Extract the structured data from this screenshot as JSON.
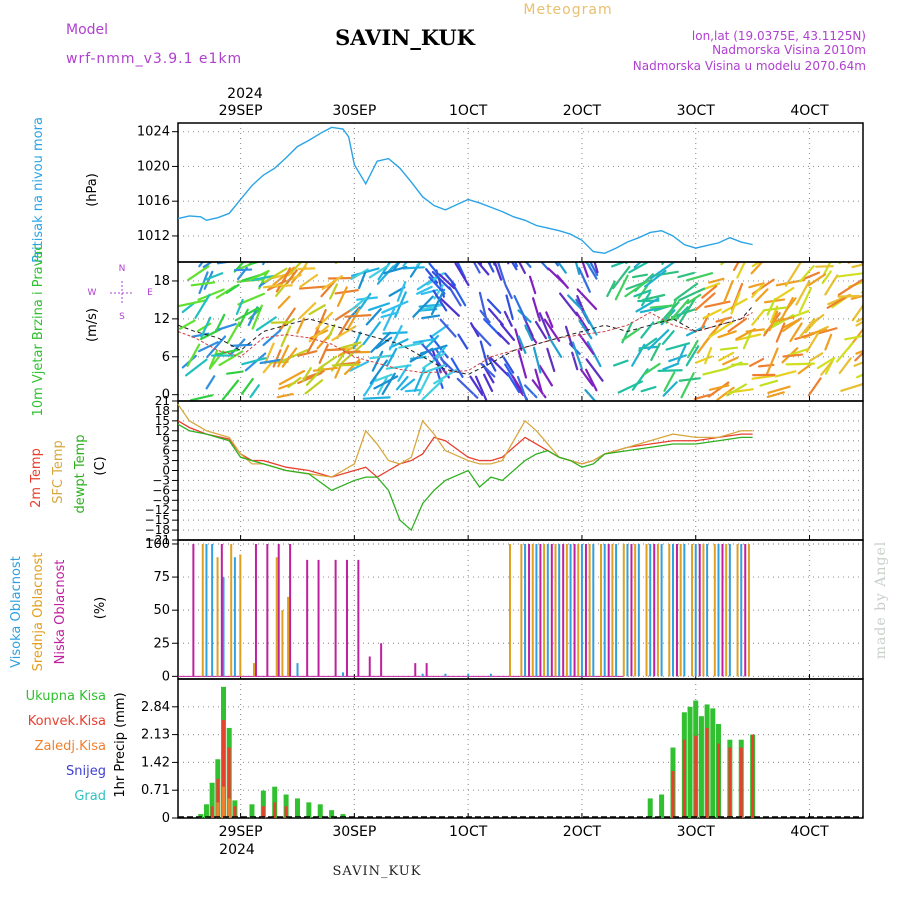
{
  "header": {
    "model_label": "Model",
    "model_name": "wrf-nmm_v3.9.1  e1km",
    "station": "SAVIN_KUK",
    "product": "Meteogram",
    "coords": "lon,lat (19.0375E, 43.1125N)",
    "elevation": "Nadmorska Visina 2010m",
    "model_elevation": "Nadmorska Visina u modelu 2070.64m"
  },
  "footer": {
    "station": "SAVIN_KUK",
    "credit": "made by Angel"
  },
  "colors": {
    "frame": "#000000",
    "grid": "#999999",
    "pressure": "#2aa4e6",
    "t2m": "#e84030",
    "sfc": "#d8a840",
    "dewpt": "#30b020",
    "title_purple": "#b040d0",
    "title_orange": "#e8c070",
    "cloud_high": "#30a0e0",
    "cloud_mid": "#e0a020",
    "cloud_low": "#c020a0",
    "precip_total": "#30c030",
    "precip_conv": "#e84030",
    "precip_frz": "#f08030",
    "precip_snow": "#4040d0",
    "precip_grad": "#30c0c0"
  },
  "time_axis": {
    "top_year": "2024",
    "bottom_year": "2024",
    "ticks": [
      "29SEP",
      "30SEP",
      "1OCT",
      "2OCT",
      "3OCT",
      "4OCT"
    ]
  },
  "chart_data": [
    {
      "type": "line",
      "panel": "pressure",
      "ylabel": "Pritisak na nivou mora",
      "unit": "(hPa)",
      "ylim": [
        1009,
        1025
      ],
      "yticks": [
        1012,
        1016,
        1020,
        1024
      ],
      "x_day_range": [
        -0.55,
        5.47
      ],
      "x": [
        -0.55,
        -0.45,
        -0.35,
        -0.3,
        -0.2,
        -0.1,
        0.0,
        0.1,
        0.2,
        0.3,
        0.4,
        0.5,
        0.6,
        0.7,
        0.8,
        0.9,
        0.95,
        1.0,
        1.1,
        1.2,
        1.3,
        1.4,
        1.5,
        1.6,
        1.7,
        1.8,
        1.9,
        2.0,
        2.1,
        2.2,
        2.3,
        2.4,
        2.5,
        2.6,
        2.7,
        2.8,
        2.9,
        3.0,
        3.1,
        3.2,
        3.3,
        3.4,
        3.5,
        3.6,
        3.7,
        3.8,
        3.9,
        4.0,
        4.1,
        4.2,
        4.3,
        4.4,
        4.5
      ],
      "series": [
        {
          "name": "Pritisak na nivou mora",
          "values": [
            1014.0,
            1014.3,
            1014.2,
            1013.8,
            1014.1,
            1014.6,
            1016.2,
            1017.8,
            1019.0,
            1019.8,
            1021.0,
            1022.3,
            1023.0,
            1023.8,
            1024.5,
            1024.3,
            1023.4,
            1020.2,
            1018.0,
            1020.6,
            1020.9,
            1019.8,
            1018.2,
            1016.5,
            1015.5,
            1015.0,
            1015.6,
            1016.2,
            1015.8,
            1015.3,
            1014.8,
            1014.2,
            1013.8,
            1013.2,
            1012.9,
            1012.6,
            1012.2,
            1011.5,
            1010.2,
            1010.0,
            1010.6,
            1011.3,
            1011.8,
            1012.4,
            1012.6,
            1012.0,
            1011.0,
            1010.6,
            1010.9,
            1011.2,
            1011.8,
            1011.3,
            1011.0
          ]
        }
      ]
    },
    {
      "type": "line",
      "panel": "wind",
      "ylabel": "10m Vjetar Brzina i Pravac",
      "unit": "(m/s)",
      "ylim": [
        -1,
        21
      ],
      "yticks": [
        0,
        6,
        12,
        18
      ],
      "compass": [
        "N",
        "E",
        "S",
        "W"
      ],
      "x": [
        -0.55,
        -0.4,
        -0.2,
        0.0,
        0.2,
        0.4,
        0.6,
        0.8,
        1.0,
        1.2,
        1.4,
        1.6,
        1.8,
        2.0,
        2.2,
        2.4,
        2.6,
        2.8,
        3.0,
        3.2,
        3.4,
        3.6,
        3.8,
        4.0,
        4.2,
        4.4,
        4.5
      ],
      "series": [
        {
          "name": "gust",
          "values": [
            10,
            9,
            7,
            6,
            9,
            9.5,
            9,
            8,
            6,
            5,
            4,
            3.5,
            3.6,
            3.8,
            6,
            7,
            8,
            9,
            9.5,
            10,
            11,
            13,
            11,
            10,
            11,
            12,
            13
          ]
        },
        {
          "name": "wind",
          "values": [
            11,
            10,
            9,
            7,
            10,
            11,
            12,
            11,
            10,
            9,
            8,
            6,
            4,
            3.2,
            5,
            7,
            8,
            9,
            10,
            11,
            10,
            11,
            12,
            10,
            11,
            12,
            14
          ]
        }
      ],
      "wind_sector_palettes": [
        [
          "#30d040",
          "#60e030",
          "#20c0c0",
          "#3090e0"
        ],
        [
          "#f0a020",
          "#e88030",
          "#c0d020",
          "#f0c030"
        ],
        [
          "#20b0e0",
          "#30c0f0",
          "#1a90d0",
          "#40d0e0"
        ],
        [
          "#5030d0",
          "#3050e0",
          "#2a60f0",
          "#4060e0"
        ],
        [
          "#8020c0",
          "#3070e0",
          "#20a0d0",
          "#6030c0"
        ],
        [
          "#20c0a0",
          "#40d060",
          "#20b0d0",
          "#30c080"
        ],
        [
          "#f0a020",
          "#e8d020",
          "#f08030",
          "#c0e020"
        ],
        [
          "#f0a020",
          "#d0e020",
          "#f08030",
          "#e8c030"
        ]
      ]
    },
    {
      "type": "line",
      "panel": "temperature",
      "ylabel": "2m Temp",
      "ylabel2": "SFC Temp",
      "ylabel3": "dewpt Temp",
      "unit": "(C)",
      "ylim": [
        -21,
        21
      ],
      "yticks": [
        -21,
        -18,
        -15,
        -12,
        -9,
        -6,
        -3,
        0,
        3,
        6,
        9,
        12,
        15,
        18,
        21
      ],
      "x": [
        -0.55,
        -0.45,
        -0.3,
        -0.1,
        0.0,
        0.1,
        0.2,
        0.4,
        0.6,
        0.8,
        1.0,
        1.1,
        1.2,
        1.3,
        1.4,
        1.5,
        1.6,
        1.7,
        1.8,
        2.0,
        2.1,
        2.2,
        2.3,
        2.5,
        2.6,
        2.7,
        2.8,
        2.9,
        3.0,
        3.1,
        3.2,
        3.4,
        3.6,
        3.8,
        4.0,
        4.2,
        4.4,
        4.5
      ],
      "series": [
        {
          "name": "2m Temp",
          "values": [
            15,
            13,
            11,
            9.5,
            5,
            3,
            3,
            1,
            0,
            -2,
            0,
            1,
            -2,
            0,
            2,
            3,
            5,
            10,
            9,
            4,
            3,
            3,
            4,
            10,
            8,
            6,
            4,
            3,
            2,
            3,
            5,
            7,
            8,
            9,
            9,
            10,
            11,
            11
          ]
        },
        {
          "name": "SFC Temp",
          "values": [
            20,
            15,
            12,
            10,
            5,
            2,
            2,
            0,
            -1,
            -2,
            2,
            12,
            8,
            3,
            2,
            4,
            15,
            11,
            6,
            3,
            2,
            2,
            3,
            15,
            12,
            8,
            4,
            3,
            2,
            3,
            5,
            7,
            9,
            11,
            10,
            10,
            12,
            12
          ]
        },
        {
          "name": "dewpt Temp",
          "values": [
            14,
            12,
            11,
            9,
            4,
            3,
            2,
            0,
            -1,
            -6,
            -3,
            -2,
            -2,
            -6,
            -15,
            -18,
            -10,
            -6,
            -3,
            0,
            -5,
            -2,
            -3,
            3,
            5,
            6,
            4,
            3,
            1,
            2,
            5,
            6,
            7,
            8,
            8,
            9,
            10,
            10
          ]
        }
      ]
    },
    {
      "type": "bar",
      "panel": "cloud",
      "ylabel": "Visoka Oblacnost",
      "ylabel2": "Srednja Oblacnost",
      "ylabel3": "Niska Oblacnost",
      "unit": "(%)",
      "ylim": [
        -2,
        103
      ],
      "yticks": [
        0,
        25,
        50,
        75,
        100
      ],
      "series": [
        {
          "name": "Visoka Oblacnost",
          "x": [
            -0.3,
            -0.25,
            -0.15,
            -0.05,
            0.5,
            0.9,
            1.6,
            1.8,
            2.0,
            2.2,
            2.5,
            2.6,
            2.7,
            2.8,
            2.9,
            3.0,
            3.1,
            3.2,
            3.3,
            3.4,
            3.5,
            3.6,
            3.7,
            3.8,
            3.9,
            4.0,
            4.1,
            4.2,
            4.3,
            4.4
          ],
          "values": [
            100,
            100,
            75,
            90,
            10,
            3,
            2,
            2,
            2,
            2,
            100,
            100,
            100,
            100,
            100,
            100,
            100,
            100,
            100,
            100,
            100,
            100,
            100,
            100,
            100,
            100,
            100,
            100,
            100,
            100
          ]
        },
        {
          "name": "Srednja Oblacnost",
          "x": [
            -0.35,
            -0.22,
            -0.1,
            -0.02,
            0.1,
            0.3,
            0.35,
            0.4,
            2.35,
            2.45,
            2.55,
            2.65,
            2.75,
            2.85,
            2.95,
            3.05,
            3.15,
            3.25,
            3.35,
            3.45,
            3.55,
            3.65,
            3.75,
            3.85,
            3.95,
            4.05,
            4.15,
            4.25,
            4.35,
            4.45
          ],
          "values": [
            100,
            90,
            100,
            92,
            10,
            90,
            50,
            60,
            100,
            100,
            100,
            100,
            100,
            100,
            100,
            100,
            100,
            100,
            100,
            100,
            100,
            100,
            100,
            100,
            100,
            100,
            100,
            100,
            100,
            100
          ]
        },
        {
          "name": "Niska Oblacnost",
          "x": [
            -0.45,
            -0.2,
            0.1,
            0.2,
            0.3,
            0.4,
            0.55,
            0.65,
            0.8,
            0.9,
            1.0,
            1.1,
            1.2,
            1.5,
            1.6,
            2.5,
            2.6,
            2.7,
            2.8,
            2.9,
            3.0,
            3.2,
            3.4,
            3.6,
            3.8,
            4.0,
            4.2,
            4.4
          ],
          "values": [
            100,
            100,
            100,
            100,
            100,
            100,
            88,
            88,
            88,
            88,
            88,
            15,
            25,
            10,
            10,
            100,
            100,
            100,
            100,
            100,
            100,
            100,
            100,
            100,
            100,
            100,
            100,
            100
          ]
        }
      ]
    },
    {
      "type": "bar",
      "panel": "precip",
      "ylabel": "1hr Precip",
      "unit": "(mm)",
      "ylim": [
        0,
        3.55
      ],
      "yticks": [
        0,
        0.71,
        1.42,
        2.13,
        2.84
      ],
      "legend": [
        "Ukupna Kisa",
        "Konvek.Kisa",
        "Zaledj.Kisa",
        "Snijeg",
        "Grad"
      ],
      "series": [
        {
          "name": "Ukupna Kisa",
          "x": [
            -0.35,
            -0.3,
            -0.25,
            -0.2,
            -0.15,
            -0.1,
            -0.05,
            0.1,
            0.2,
            0.3,
            0.4,
            0.5,
            0.6,
            0.7,
            0.8,
            0.9,
            3.6,
            3.7,
            3.8,
            3.9,
            3.95,
            4.0,
            4.05,
            4.1,
            4.15,
            4.2,
            4.3,
            4.4,
            4.5
          ],
          "values": [
            0.1,
            0.35,
            0.9,
            1.5,
            3.35,
            2.3,
            0.45,
            0.35,
            0.7,
            0.8,
            0.6,
            0.5,
            0.4,
            0.35,
            0.2,
            0.1,
            0.5,
            0.6,
            1.8,
            2.7,
            2.84,
            3.0,
            2.6,
            2.9,
            2.8,
            2.4,
            2.0,
            2.0,
            2.13
          ]
        },
        {
          "name": "Konvek.Kisa",
          "x": [
            -0.25,
            -0.2,
            -0.15,
            -0.1,
            -0.05,
            0.2,
            0.3,
            0.4,
            3.8,
            3.9,
            4.0,
            4.1,
            4.2,
            4.3,
            4.4,
            4.5
          ],
          "values": [
            0.3,
            1.0,
            2.5,
            1.8,
            0.3,
            0.3,
            0.4,
            0.3,
            1.2,
            2.0,
            2.1,
            2.3,
            1.9,
            1.8,
            1.8,
            2.13
          ]
        },
        {
          "name": "Zaledj.Kisa",
          "x": [
            -0.2,
            -0.15,
            -0.1
          ],
          "values": [
            0.4,
            0.8,
            0.5
          ]
        },
        {
          "name": "Snijeg",
          "x": [],
          "values": []
        },
        {
          "name": "Grad",
          "x": [],
          "values": []
        }
      ]
    }
  ]
}
